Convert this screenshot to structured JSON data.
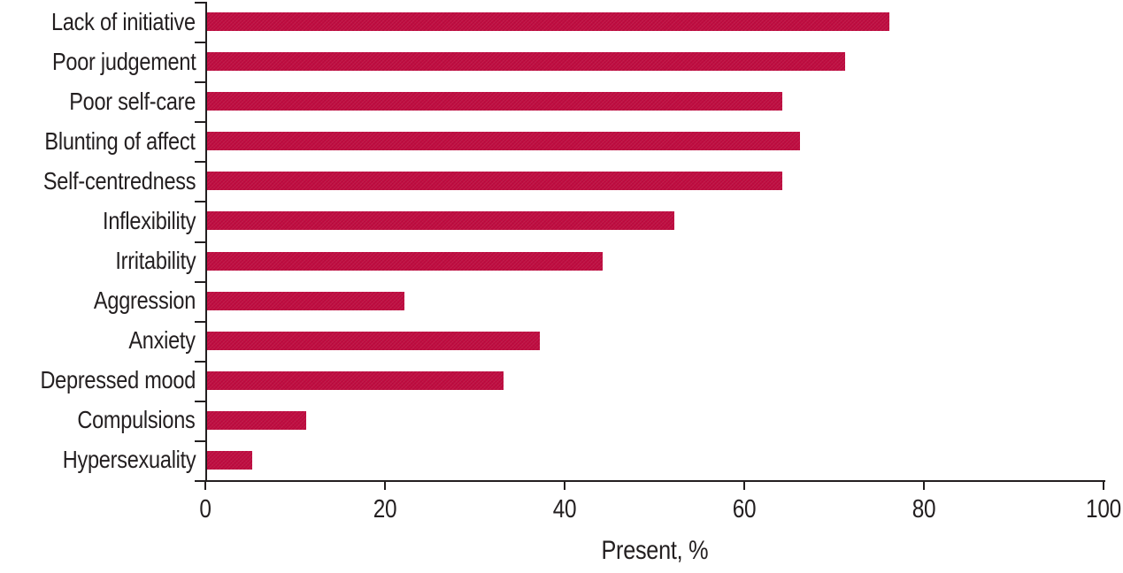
{
  "chart_data": {
    "type": "bar",
    "orientation": "horizontal",
    "title": "",
    "categories": [
      "Lack of initiative",
      "Poor judgement",
      "Poor self-care",
      "Blunting of affect",
      "Self-centredness",
      "Inflexibility",
      "Irritability",
      "Aggression",
      "Anxiety",
      "Depressed mood",
      "Compulsions",
      "Hypersexuality"
    ],
    "values": [
      76,
      71,
      64,
      66,
      64,
      52,
      44,
      22,
      37,
      33,
      11,
      5
    ],
    "xlabel": "Present, %",
    "ylabel": "",
    "xlim": [
      0,
      100
    ],
    "xticks": [
      0,
      20,
      40,
      60,
      80,
      100
    ],
    "grid": false,
    "legend_position": "none",
    "colors": {
      "bar": "#bf0c40",
      "axis": "#231f20",
      "text": "#231f20",
      "background": "#ffffff"
    }
  }
}
